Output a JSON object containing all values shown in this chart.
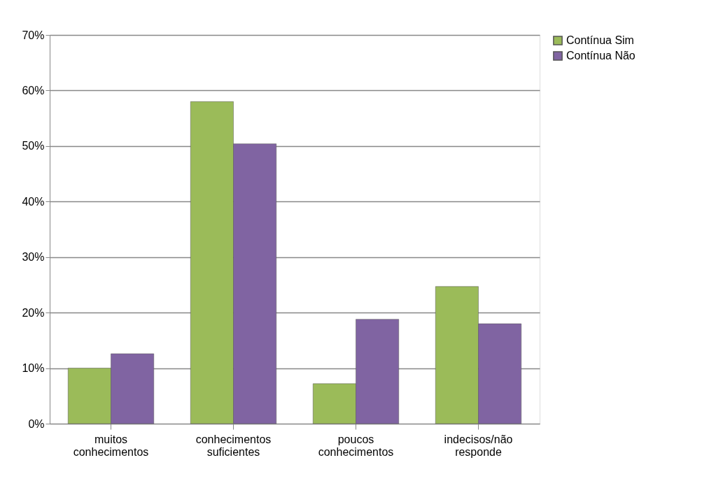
{
  "chart_data": {
    "type": "bar",
    "categories": [
      "muitos conhecimentos",
      "conhecimentos suficientes",
      "poucos conhecimentos",
      "indecisos/não responde"
    ],
    "series": [
      {
        "name": "Contínua Sim",
        "color": "#9bbb59",
        "values": [
          10.0,
          58.0,
          7.2,
          24.7
        ]
      },
      {
        "name": "Contínua Não",
        "color": "#8064a2",
        "values": [
          12.6,
          50.4,
          18.8,
          18.0
        ]
      }
    ],
    "ylim": [
      0,
      70
    ],
    "yticks": [
      {
        "value": 0,
        "label": "0%"
      },
      {
        "value": 10,
        "label": "10%"
      },
      {
        "value": 20,
        "label": "20%"
      },
      {
        "value": 30,
        "label": "30%"
      },
      {
        "value": 40,
        "label": "40%"
      },
      {
        "value": 50,
        "label": "50%"
      },
      {
        "value": 60,
        "label": "60%"
      },
      {
        "value": 70,
        "label": "70%"
      }
    ],
    "grid": "y",
    "legend": "right"
  }
}
